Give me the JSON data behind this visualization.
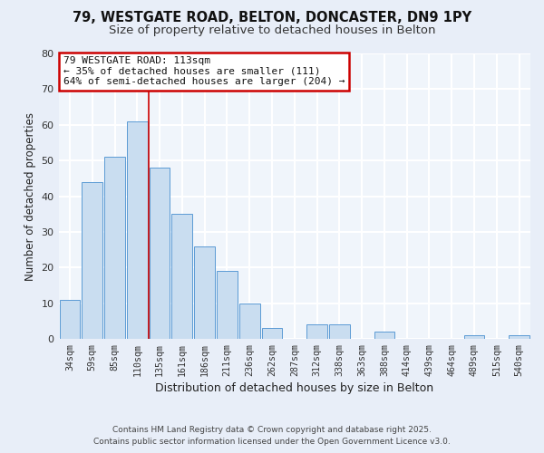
{
  "title1": "79, WESTGATE ROAD, BELTON, DONCASTER, DN9 1PY",
  "title2": "Size of property relative to detached houses in Belton",
  "xlabel": "Distribution of detached houses by size in Belton",
  "ylabel": "Number of detached properties",
  "categories": [
    "34sqm",
    "59sqm",
    "85sqm",
    "110sqm",
    "135sqm",
    "161sqm",
    "186sqm",
    "211sqm",
    "236sqm",
    "262sqm",
    "287sqm",
    "312sqm",
    "338sqm",
    "363sqm",
    "388sqm",
    "414sqm",
    "439sqm",
    "464sqm",
    "489sqm",
    "515sqm",
    "540sqm"
  ],
  "values": [
    11,
    44,
    51,
    61,
    48,
    35,
    26,
    19,
    10,
    3,
    0,
    4,
    4,
    0,
    2,
    0,
    0,
    0,
    1,
    0,
    1
  ],
  "bar_color": "#c9ddf0",
  "bar_edge_color": "#5b9bd5",
  "highlight_bar_index": 3,
  "highlight_line_color": "#cc0000",
  "ylim": [
    0,
    80
  ],
  "yticks": [
    0,
    10,
    20,
    30,
    40,
    50,
    60,
    70,
    80
  ],
  "annotation_title": "79 WESTGATE ROAD: 113sqm",
  "annotation_line1": "← 35% of detached houses are smaller (111)",
  "annotation_line2": "64% of semi-detached houses are larger (204) →",
  "footer1": "Contains HM Land Registry data © Crown copyright and database right 2025.",
  "footer2": "Contains public sector information licensed under the Open Government Licence v3.0.",
  "bg_color": "#e8eef8",
  "plot_bg_color": "#f0f5fb",
  "grid_color": "#ffffff",
  "title_fontsize": 10.5,
  "subtitle_fontsize": 9.5,
  "annotation_box_color": "#ffffff",
  "annotation_box_edge": "#cc0000",
  "ann_font_size": 8.0
}
